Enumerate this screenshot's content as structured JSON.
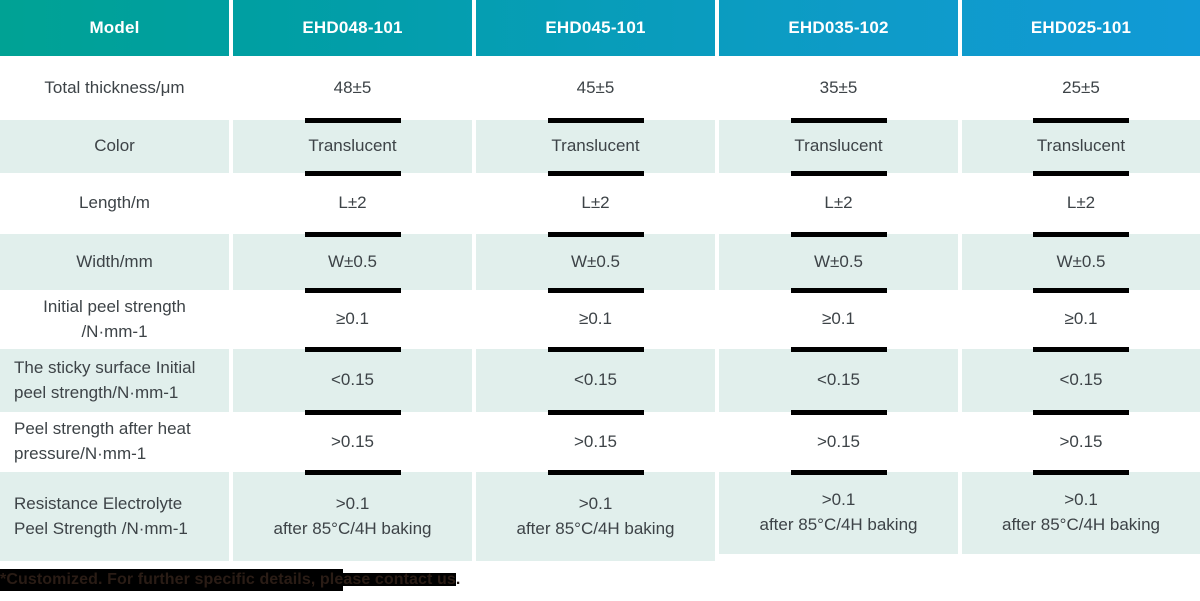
{
  "table": {
    "header": {
      "label": "Model",
      "models": [
        "EHD048-101",
        "EHD045-101",
        "EHD035-102",
        "EHD025-101"
      ]
    },
    "rows": [
      {
        "label": "Total thickness/μm",
        "values": [
          "48±5",
          "45±5",
          "35±5",
          "25±5"
        ]
      },
      {
        "label": "Color",
        "values": [
          "Translucent",
          "Translucent",
          "Translucent",
          "Translucent"
        ]
      },
      {
        "label": "Length/m",
        "values": [
          "L±2",
          "L±2",
          "L±2",
          "L±2"
        ]
      },
      {
        "label": "Width/mm",
        "values": [
          "W±0.5",
          "W±0.5",
          "W±0.5",
          "W±0.5"
        ]
      },
      {
        "label": "Initial peel strength\n/N·mm-1",
        "values": [
          "≥0.1",
          "≥0.1",
          "≥0.1",
          "≥0.1"
        ]
      },
      {
        "label": "The sticky surface Initial\npeel strength/N·mm-1",
        "values": [
          "<0.15",
          "<0.15",
          "<0.15",
          "<0.15"
        ]
      },
      {
        "label": "Peel strength after heat\npressure/N·mm-1",
        "values": [
          ">0.15",
          ">0.15",
          ">0.15",
          ">0.15"
        ]
      },
      {
        "label": "Resistance Electrolyte\nPeel Strength /N·mm-1",
        "values": [
          ">0.1\nafter 85°C/4H baking",
          ">0.1\nafter 85°C/4H baking",
          ">0.1\nafter 85°C/4H baking",
          ">0.1\nafter 85°C/4H baking"
        ]
      }
    ],
    "footnote": {
      "segment_highlighted": "*Customized. For further specific details, ple",
      "segment_band": "ase contact us",
      "segment_plain": "."
    }
  },
  "colors": {
    "header_gradient_start": "#00a294",
    "header_gradient_end": "#119ad6",
    "header_text": "#ffffff",
    "row_alternate_bg": "#e1efec",
    "body_text": "#3d4347",
    "boundary_bar": "#000000",
    "footnote_highlight": "#000000"
  }
}
